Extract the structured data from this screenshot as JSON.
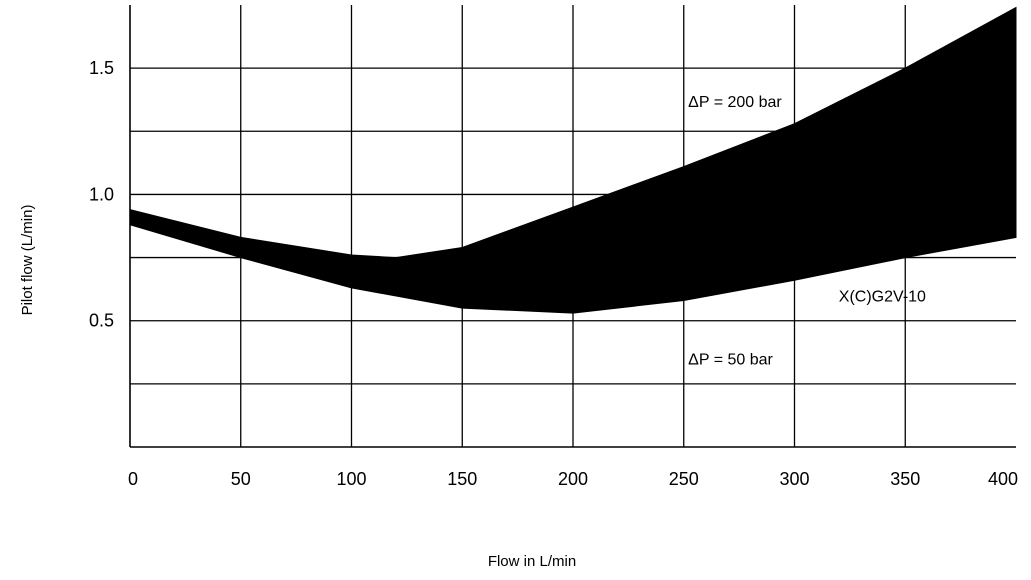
{
  "chart_data": {
    "type": "area",
    "title": "",
    "xlabel": "Flow in L/min",
    "ylabel": "Pilot flow (L/min)",
    "xlim": [
      0,
      400
    ],
    "ylim": [
      0,
      1.75
    ],
    "x_ticks": [
      0,
      50,
      100,
      150,
      200,
      250,
      300,
      350,
      400
    ],
    "y_ticks": [
      0.5,
      1.0,
      1.5
    ],
    "grid": true,
    "band": {
      "upper": {
        "label": "ΔP = 200 bar",
        "x": [
          0,
          50,
          100,
          120,
          150,
          200,
          250,
          300,
          350,
          400
        ],
        "y": [
          0.94,
          0.83,
          0.76,
          0.75,
          0.79,
          0.95,
          1.11,
          1.28,
          1.5,
          1.74
        ]
      },
      "lower": {
        "label": "ΔP = 50 bar",
        "x": [
          0,
          50,
          100,
          150,
          200,
          250,
          300,
          350,
          400
        ],
        "y": [
          0.88,
          0.75,
          0.63,
          0.55,
          0.53,
          0.58,
          0.66,
          0.75,
          0.83
        ]
      },
      "fill_color": "#000000"
    },
    "annotations": [
      {
        "text": "ΔP = 200 bar",
        "x": 252,
        "y": 1.37
      },
      {
        "text": "ΔP = 50 bar",
        "x": 252,
        "y": 0.35
      },
      {
        "text": "X(C)G2V-10",
        "x": 320,
        "y": 0.6
      }
    ]
  }
}
